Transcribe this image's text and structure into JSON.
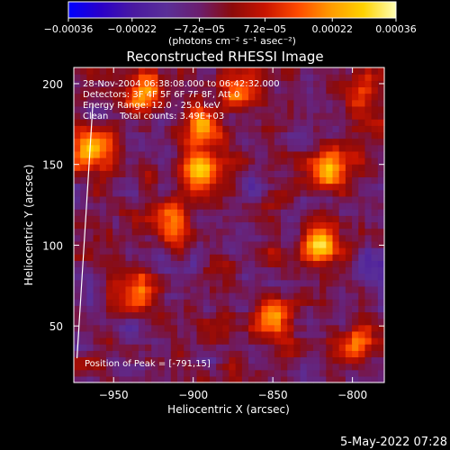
{
  "chart_data": {
    "type": "heatmap",
    "title": "Reconstructed RHESSI Image",
    "xlabel": "Heliocentric X (arcsec)",
    "ylabel": "Heliocentric Y (arcsec)",
    "xlim": [
      -975,
      -780
    ],
    "ylim": [
      15,
      210
    ],
    "x_ticks": [
      -950,
      -900,
      -850,
      -800
    ],
    "x_tick_labels": [
      "−950",
      "−900",
      "−850",
      "−800"
    ],
    "y_ticks": [
      50,
      100,
      150,
      200
    ],
    "y_tick_labels": [
      "50",
      "100",
      "150",
      "200"
    ],
    "colorbar": {
      "range": [
        -0.00036,
        0.00036
      ],
      "tick_values": [
        -0.00036,
        -0.00022,
        -7.2e-05,
        7.2e-05,
        0.00022,
        0.00036
      ],
      "tick_labels": [
        "−0.00036",
        "−0.00022",
        "−7.2e−05",
        "7.2e−05",
        "0.00022",
        "0.00036"
      ],
      "unit_label": "(photons cm⁻² s⁻¹ asec⁻²)"
    },
    "colormap": [
      "#0000ff",
      "#2a00c8",
      "#4a1aa0",
      "#5a2f98",
      "#6b1e6e",
      "#8c0a0a",
      "#c81400",
      "#ff4a00",
      "#ff9a00",
      "#ffd200",
      "#ffffb4"
    ],
    "annotations": [
      "28-Nov-2004 06:38:08.000 to 06:42:32.000",
      "Detectors: 3F 4F 5F 6F 7F 8F, Att 0",
      "Energy Range: 12.0 - 25.0 keV",
      "Clean    Total counts: 3.49E+03"
    ],
    "peak_label": "Position of Peak = [-791,15]",
    "peak_position": [
      -791,
      15
    ],
    "bright_regions": [
      {
        "x": -895,
        "y": 145,
        "intensity": 0.00036
      },
      {
        "x": -820,
        "y": 100,
        "intensity": 0.00033
      },
      {
        "x": -815,
        "y": 148,
        "intensity": 0.0003
      },
      {
        "x": -963,
        "y": 160,
        "intensity": 0.0003
      },
      {
        "x": -932,
        "y": 196,
        "intensity": 0.00028
      },
      {
        "x": -895,
        "y": 175,
        "intensity": 0.00026
      },
      {
        "x": -870,
        "y": 196,
        "intensity": 0.00026
      },
      {
        "x": -850,
        "y": 55,
        "intensity": 0.00025
      },
      {
        "x": -915,
        "y": 115,
        "intensity": 0.00022
      },
      {
        "x": -800,
        "y": 40,
        "intensity": 0.00022
      },
      {
        "x": -935,
        "y": 72,
        "intensity": 0.0002
      },
      {
        "x": -795,
        "y": 195,
        "intensity": 0.0002
      }
    ],
    "limb_line": [
      [
        -963,
        188
      ],
      [
        -973,
        30
      ]
    ]
  },
  "footer": {
    "date": "5-May-2022 07:28"
  }
}
